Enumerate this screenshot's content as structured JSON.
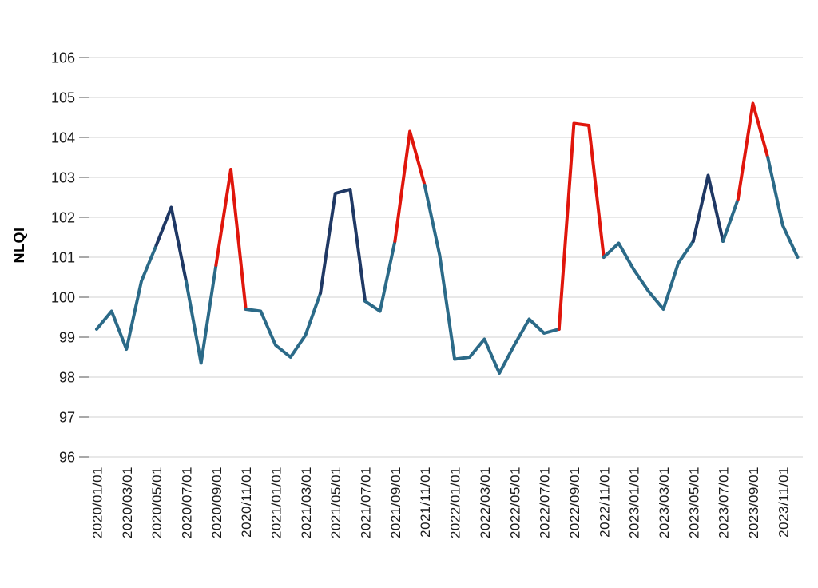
{
  "chart_data": {
    "type": "line",
    "title": "",
    "xlabel": "",
    "ylabel": "NLQI",
    "ylim": [
      96,
      106
    ],
    "ytick_step": 1,
    "yticks": [
      106,
      105,
      104,
      103,
      102,
      101,
      100,
      99,
      98,
      97,
      96
    ],
    "xtick_every": 2,
    "grid": "horizontal",
    "legend_position": "none",
    "x": [
      "2020/01/01",
      "2020/02/01",
      "2020/03/01",
      "2020/04/01",
      "2020/05/01",
      "2020/06/01",
      "2020/07/01",
      "2020/08/01",
      "2020/09/01",
      "2020/10/01",
      "2020/11/01",
      "2020/12/01",
      "2021/01/01",
      "2021/02/01",
      "2021/03/01",
      "2021/04/01",
      "2021/05/01",
      "2021/06/01",
      "2021/07/01",
      "2021/08/01",
      "2021/09/01",
      "2021/10/01",
      "2021/11/01",
      "2021/12/01",
      "2022/01/01",
      "2022/02/01",
      "2022/03/01",
      "2022/04/01",
      "2022/05/01",
      "2022/06/01",
      "2022/07/01",
      "2022/08/01",
      "2022/09/01",
      "2022/10/01",
      "2022/11/01",
      "2022/12/01",
      "2023/01/01",
      "2023/02/01",
      "2023/03/01",
      "2023/04/01",
      "2023/05/01",
      "2023/06/01",
      "2023/07/01",
      "2023/08/01",
      "2023/09/01",
      "2023/10/01",
      "2023/11/01",
      "2023/12/01"
    ],
    "values": [
      99.2,
      99.65,
      98.7,
      100.4,
      101.3,
      102.25,
      100.4,
      98.35,
      100.8,
      103.2,
      99.7,
      99.65,
      98.8,
      98.5,
      99.05,
      100.1,
      102.6,
      102.7,
      99.9,
      99.65,
      101.4,
      104.15,
      102.8,
      101.05,
      98.45,
      98.5,
      98.95,
      98.1,
      98.8,
      99.45,
      99.1,
      99.2,
      104.35,
      104.3,
      101.0,
      101.35,
      100.7,
      100.15,
      99.7,
      100.85,
      101.4,
      103.05,
      101.4,
      102.45,
      104.85,
      103.5,
      101.8,
      101.0
    ],
    "segment_colors": [
      "teal",
      "teal",
      "teal",
      "teal",
      "navy",
      "navy",
      "teal",
      "teal",
      "red",
      "red",
      "teal",
      "teal",
      "teal",
      "teal",
      "teal",
      "navy",
      "navy",
      "navy",
      "teal",
      "teal",
      "red",
      "red",
      "teal",
      "teal",
      "teal",
      "teal",
      "teal",
      "teal",
      "teal",
      "teal",
      "teal",
      "red",
      "red",
      "red",
      "teal",
      "teal",
      "teal",
      "teal",
      "teal",
      "teal",
      "navy",
      "navy",
      "teal",
      "red",
      "red",
      "teal",
      "teal"
    ],
    "palette": {
      "teal": "#2B6A88",
      "navy": "#1F3864",
      "red": "#E0160C"
    },
    "gridline_color": "#D9D9D9",
    "tick_color": "#6E6E6E",
    "text_color": "#1A1A1A"
  }
}
